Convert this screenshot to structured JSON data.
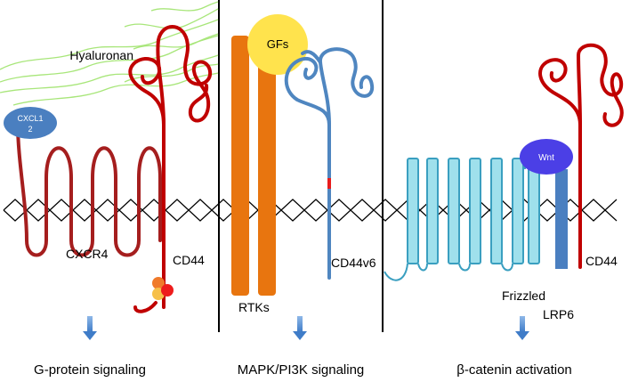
{
  "labels": {
    "hyaluronan": "Hyaluronan",
    "cxcl12_line1": "CXCL1",
    "cxcl12_line2": "2",
    "cxcr4": "CXCR4",
    "cd44_left": "CD44",
    "gfs": "GFs",
    "rtks": "RTKs",
    "cd44v6": "CD44v6",
    "wnt": "Wnt",
    "frizzled": "Frizzled",
    "lrp6": "LRP6",
    "cd44_right": "CD44"
  },
  "captions": {
    "left": "G-protein signaling",
    "middle": "MAPK/PI3K signaling",
    "right": "β-catenin activation"
  },
  "colors": {
    "cxcr4": "#a51e1e",
    "cd44": "#c00000",
    "hyaluronan": "#a8e67a",
    "cxcl12": "#4a7fc0",
    "rtk": "#e8750f",
    "gfs": "#ffe34d",
    "cd44v6": "#4f86c0",
    "frizzled_fill": "#9fe0ec",
    "frizzled_stroke": "#3a9fc0",
    "wnt": "#4b3fe6",
    "lrp6": "#4a7fc0",
    "arrow": "#5b95d6"
  }
}
